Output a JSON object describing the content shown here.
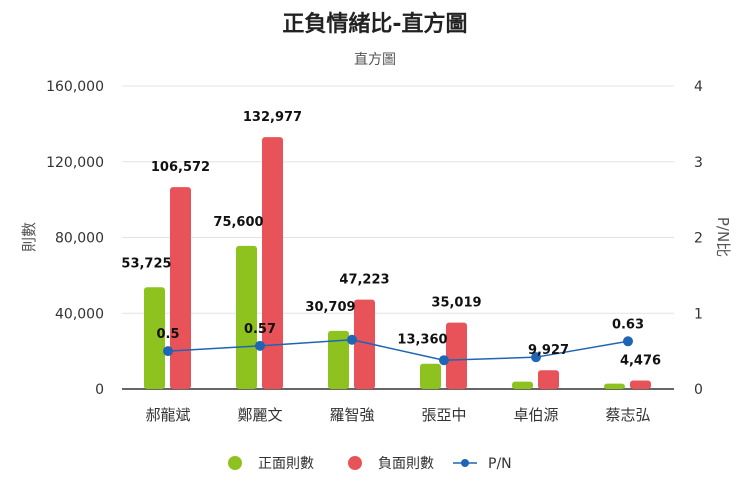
{
  "chart_data": {
    "type": "bar",
    "title": "正負情緒比-直方圖",
    "subtitle": "直方圖",
    "ylabel": "則數",
    "y2label": "P/N比",
    "ylim": [
      0,
      160000
    ],
    "y2lim": [
      0,
      4
    ],
    "yticks": [
      "0",
      "40,000",
      "80,000",
      "120,000",
      "160,000"
    ],
    "y2ticks": [
      "0",
      "1",
      "2",
      "3",
      "4"
    ],
    "grid": true,
    "legend_position": "bottom",
    "categories": [
      "郝龍斌",
      "鄭麗文",
      "羅智強",
      "張亞中",
      "卓伯源",
      "蔡志弘"
    ],
    "series": [
      {
        "name": "正面則數",
        "type": "bar",
        "color": "#8dc21f",
        "values": [
          53725,
          75600,
          30709,
          13360,
          3900,
          2820
        ],
        "labels": [
          "53,725",
          "75,600",
          "30,709",
          "13,360",
          "",
          ""
        ]
      },
      {
        "name": "負面則數",
        "type": "bar",
        "color": "#e8535a",
        "values": [
          106572,
          132977,
          47223,
          35019,
          9927,
          4476
        ],
        "labels": [
          "106,572",
          "132,977",
          "47,223",
          "35,019",
          "9,927",
          "4,476"
        ]
      },
      {
        "name": "P/N",
        "type": "line",
        "axis": "right",
        "color": "#1f65b5",
        "values": [
          0.5,
          0.57,
          0.65,
          0.38,
          0.42,
          0.63
        ],
        "labels": [
          "0.5",
          "0.57",
          "",
          "",
          "",
          "0.63"
        ]
      }
    ]
  }
}
